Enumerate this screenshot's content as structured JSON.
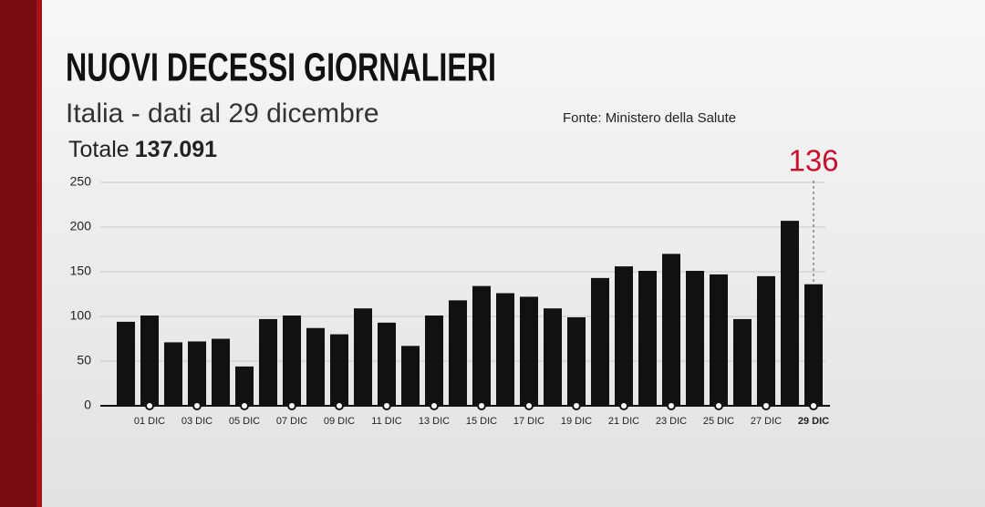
{
  "chart_data": {
    "type": "bar",
    "title": "NUOVI DECESSI GIORNALIERI",
    "subtitle": "Italia - dati al 29 dicembre",
    "source": "Fonte: Ministero della Salute",
    "total_label": "Totale",
    "total": "137.091",
    "categories": [
      null,
      "01 DIC",
      null,
      "03 DIC",
      null,
      "05 DIC",
      null,
      "07 DIC",
      null,
      "09 DIC",
      null,
      "11 DIC",
      null,
      "13 DIC",
      null,
      "15 DIC",
      null,
      "17 DIC",
      null,
      "19 DIC",
      null,
      "21 DIC",
      null,
      "23 DIC",
      null,
      "25 DIC",
      null,
      "27 DIC",
      null,
      "29 DIC"
    ],
    "values": [
      94,
      101,
      71,
      72,
      75,
      44,
      97,
      101,
      87,
      80,
      109,
      93,
      67,
      101,
      118,
      134,
      126,
      122,
      109,
      99,
      143,
      156,
      151,
      170,
      151,
      147,
      97,
      145,
      207,
      136
    ],
    "color": "#111111",
    "highlight_color": "#c8102e",
    "ylim": [
      0,
      250
    ],
    "yticks": [
      0,
      50,
      100,
      150,
      200,
      250
    ],
    "grid": true
  }
}
